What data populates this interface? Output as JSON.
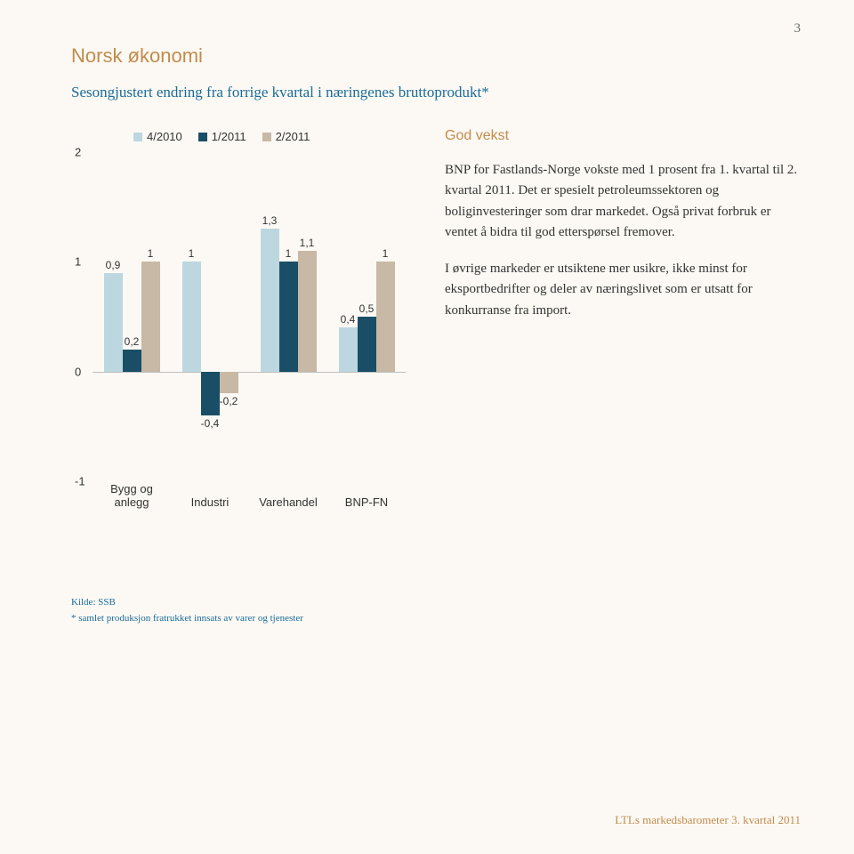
{
  "page_number": "3",
  "title": "Norsk økonomi",
  "subtitle": "Sesongjustert endring fra forrige kvartal i næringenes bruttoprodukt*",
  "text_heading": "God vekst",
  "para1": "BNP for Fastlands-Norge vokste med 1 prosent fra 1. kvartal til 2. kvartal 2011. Det er spesielt petroleumssektoren og boliginvesteringer som drar markedet. Også privat forbruk er ventet å bidra til god etterspørsel fremover.",
  "para2": "I øvrige markeder er utsiktene mer usikre, ikke minst for eksportbedrifter og deler av næringslivet som er utsatt for konkurranse fra import.",
  "source": "Kilde: SSB",
  "source_note": "* samlet produksjon fratrukket innsats av varer og tjenester",
  "footer": "LTLs markedsbarometer 3. kvartal 2011",
  "chart": {
    "type": "bar",
    "background_color": "#fcf9f4",
    "axis_color": "#bfbfbf",
    "label_fontsize": 13,
    "bar_label_fontsize": 12,
    "ylim": [
      -1,
      2
    ],
    "yticks": [
      -1,
      0,
      1,
      2
    ],
    "series": [
      {
        "label": "4/2010",
        "color": "#bcd7e0"
      },
      {
        "label": "1/2011",
        "color": "#1a4e66"
      },
      {
        "label": "2/2011",
        "color": "#c7b9a5"
      }
    ],
    "categories": [
      "Bygg og anlegg",
      "Industri",
      "Varehandel",
      "BNP-FN"
    ],
    "data": [
      {
        "cat": "Bygg og anlegg",
        "vals": [
          0.9,
          0.2,
          1
        ],
        "labels": [
          "0,9",
          "0,2",
          "1"
        ]
      },
      {
        "cat": "Industri",
        "vals": [
          1,
          -0.4,
          -0.2
        ],
        "labels": [
          "1",
          "-0,4",
          "-0,2"
        ]
      },
      {
        "cat": "Varehandel",
        "vals": [
          1.3,
          1,
          1.1
        ],
        "labels": [
          "1,3",
          "1",
          "1,1"
        ]
      },
      {
        "cat": "BNP-FN",
        "vals": [
          0.4,
          0.5,
          1
        ],
        "labels": [
          "0,4",
          "0,5",
          "1"
        ]
      }
    ]
  },
  "colors": {
    "title": "#c28b4b",
    "subtitle": "#1a6b99",
    "body": "#333333",
    "footer": "#c28b4b",
    "source": "#1a6b99"
  }
}
